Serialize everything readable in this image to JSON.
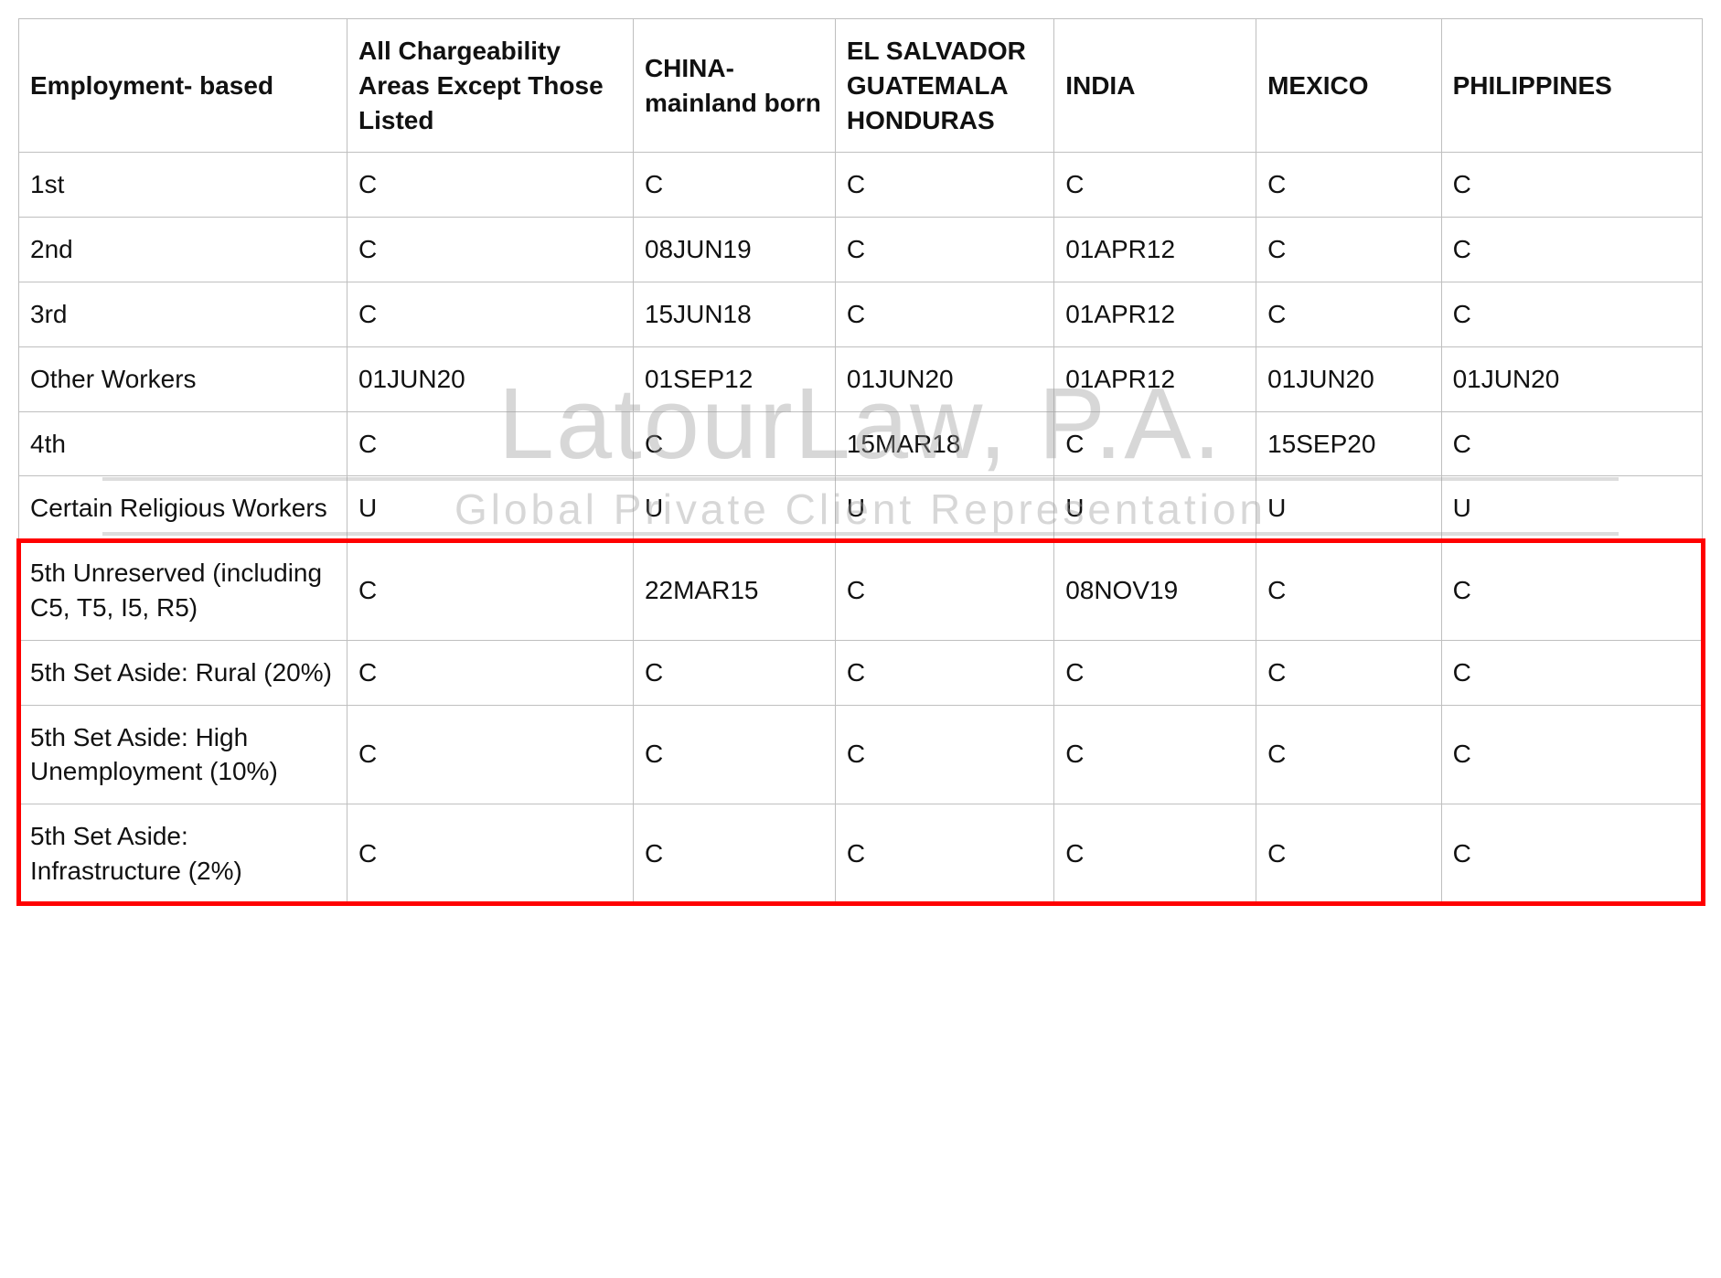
{
  "table": {
    "columns": [
      "Employment-\nbased",
      "All Chargeability Areas Except Those Listed",
      "CHINA-mainland born",
      "EL SALVADOR GUATEMALA HONDURAS",
      "INDIA",
      "MEXICO",
      "PHILIPPINES"
    ],
    "rows": [
      {
        "label": "1st",
        "cells": [
          "C",
          "C",
          "C",
          "C",
          "C",
          "C"
        ]
      },
      {
        "label": "2nd",
        "cells": [
          "C",
          "08JUN19",
          "C",
          "01APR12",
          "C",
          "C"
        ]
      },
      {
        "label": "3rd",
        "cells": [
          "C",
          "15JUN18",
          "C",
          "01APR12",
          "C",
          "C"
        ]
      },
      {
        "label": "Other Workers",
        "cells": [
          "01JUN20",
          "01SEP12",
          "01JUN20",
          "01APR12",
          "01JUN20",
          "01JUN20"
        ]
      },
      {
        "label": "4th",
        "cells": [
          "C",
          "C",
          "15MAR18",
          "C",
          "15SEP20",
          "C"
        ]
      },
      {
        "label": "Certain Religious Workers",
        "cells": [
          "U",
          "U",
          "U",
          "U",
          "U",
          "U"
        ]
      },
      {
        "label": "5th Unreserved\n(including C5, T5, I5, R5)",
        "cells": [
          "C",
          "22MAR15",
          "C",
          "08NOV19",
          "C",
          "C"
        ],
        "hl": true
      },
      {
        "label": "5th Set Aside:\nRural (20%)",
        "cells": [
          "C",
          "C",
          "C",
          "C",
          "C",
          "C"
        ],
        "hl": true
      },
      {
        "label": "5th Set Aside:\nHigh Unemployment (10%)",
        "cells": [
          "C",
          "C",
          "C",
          "C",
          "C",
          "C"
        ],
        "hl": true
      },
      {
        "label": "5th Set Aside:\nInfrastructure (2%)",
        "cells": [
          "C",
          "C",
          "C",
          "C",
          "C",
          "C"
        ],
        "hl": true
      }
    ],
    "border_color": "#bfbfbf",
    "text_color": "#111111",
    "header_fontweight": 700,
    "body_fontsize": 28,
    "background_color": "#ffffff",
    "highlight_border_color": "#ff0000",
    "highlight_border_width": 5,
    "column_widths_pct": [
      19.5,
      17,
      12,
      13,
      12,
      11,
      15.5
    ]
  },
  "watermark": {
    "main": "LatourLaw, P.A.",
    "sub": "Global Private Client Representation",
    "color": "#9e9e9e",
    "opacity": 0.4
  }
}
